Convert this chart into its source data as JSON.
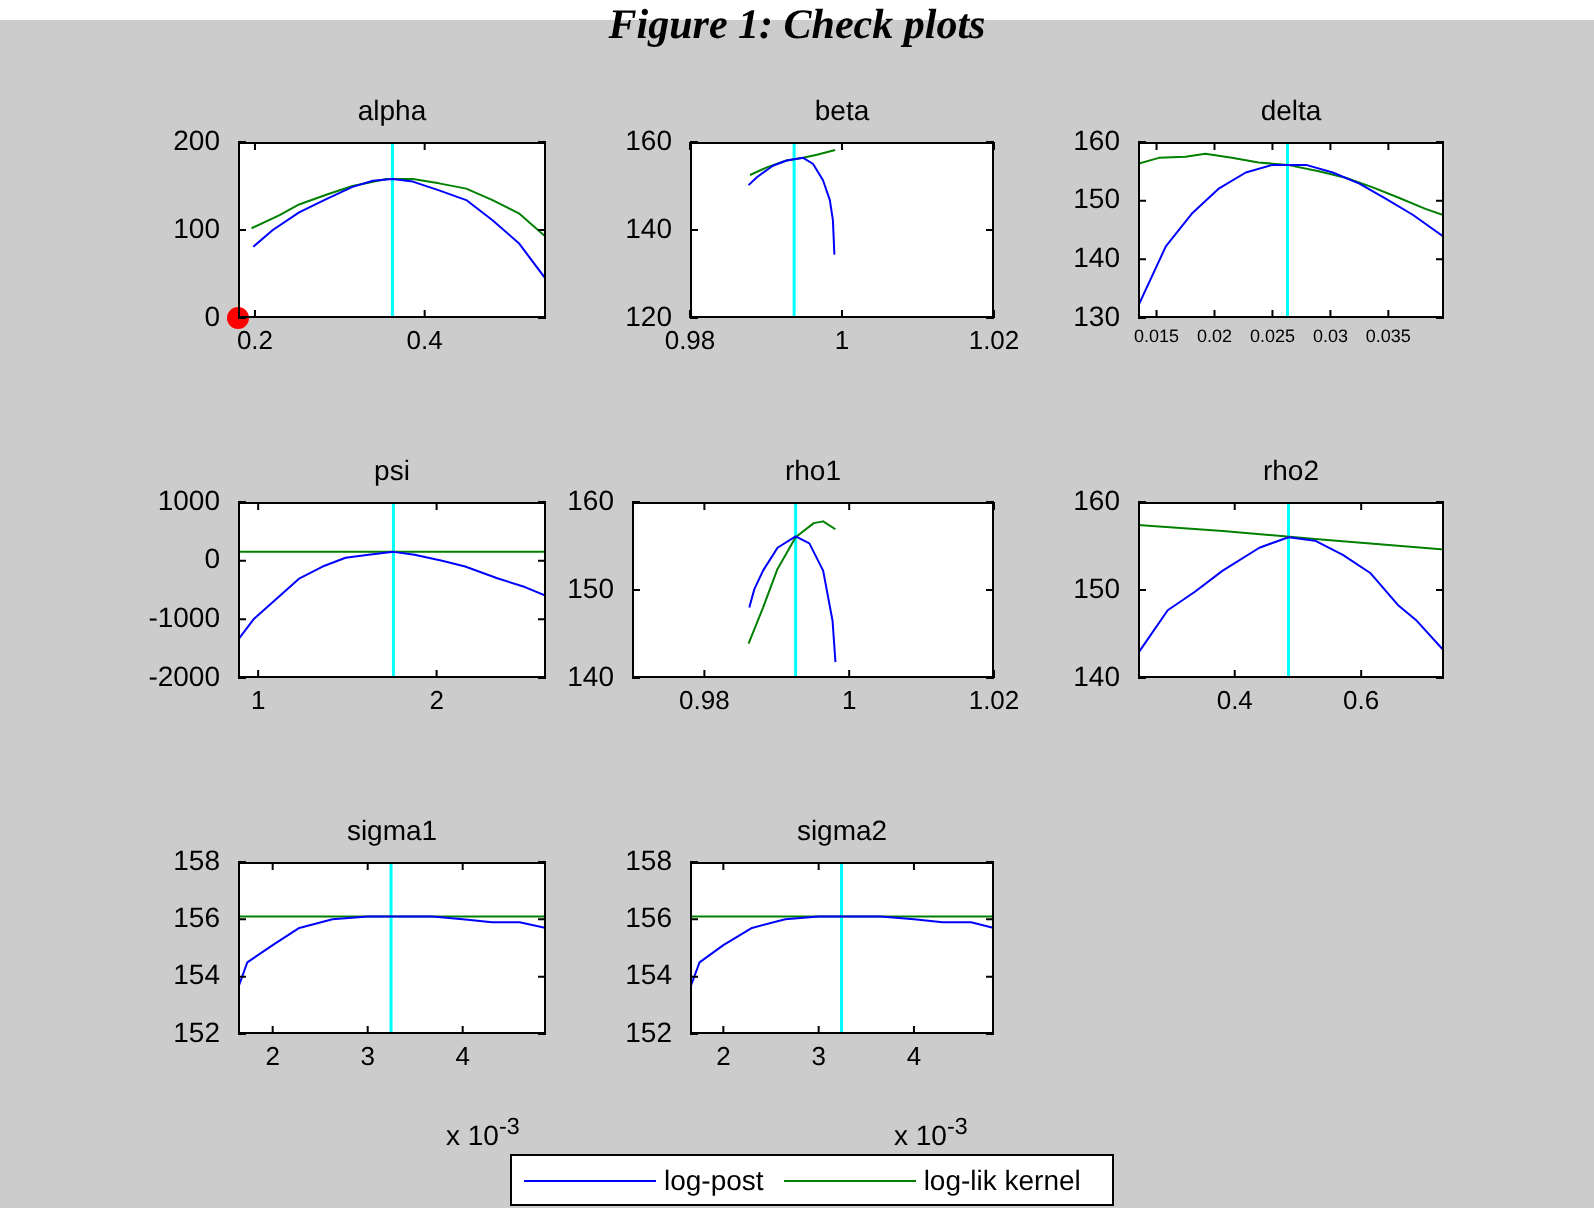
{
  "chart_data": [
    {
      "type": "line",
      "title": "alpha",
      "annotations": [
        "Figure 1: Check plots"
      ],
      "legend": "bottom",
      "xlim": [
        0.18,
        0.543
      ],
      "xticks": [
        0.2,
        0.4
      ],
      "ylim": [
        0,
        200
      ],
      "yticks": [
        0,
        100,
        200
      ],
      "marker": "none",
      "ref_lines": [
        {
          "axis": "x",
          "value": 0.362,
          "color": "#00ffff"
        }
      ],
      "series": [
        {
          "name": "log-post",
          "color": "#0000ff",
          "x": [
            0.198,
            0.221,
            0.252,
            0.284,
            0.315,
            0.339,
            0.362,
            0.386,
            0.417,
            0.449,
            0.48,
            0.511,
            0.543
          ],
          "values": [
            81,
            100,
            120,
            135,
            149,
            156,
            158,
            155,
            145,
            134,
            111,
            85,
            44
          ]
        },
        {
          "name": "log-lik kernel",
          "color": "#008000",
          "x": [
            0.196,
            0.229,
            0.252,
            0.284,
            0.315,
            0.355,
            0.386,
            0.417,
            0.449,
            0.48,
            0.511,
            0.543
          ],
          "values": [
            102,
            117,
            129,
            140,
            150,
            158,
            158,
            153,
            147,
            134,
            119,
            92
          ]
        },
        {
          "type": "scatter",
          "marker": "circle",
          "color": "#ff0000",
          "x": [
            0.18
          ],
          "values": [
            0
          ]
        }
      ]
    },
    {
      "type": "line",
      "title": "beta",
      "xlim": [
        0.98,
        1.02
      ],
      "xticks": [
        0.98,
        1,
        1.02
      ],
      "ylim": [
        120,
        160
      ],
      "yticks": [
        120,
        140,
        160
      ],
      "marker": "none",
      "ref_lines": [
        {
          "axis": "x",
          "value": 0.9937,
          "color": "#00ffff"
        }
      ],
      "series": [
        {
          "color": "#0000ff",
          "x": [
            0.9877,
            0.9888,
            0.9909,
            0.9927,
            0.9949,
            0.9962,
            0.9975,
            0.9984,
            0.9988,
            0.999
          ],
          "values": [
            150.2,
            152,
            154.6,
            155.8,
            156.4,
            155,
            151.3,
            146.8,
            142.3,
            134.4
          ]
        },
        {
          "color": "#008000",
          "x": [
            0.9879,
            0.9902,
            0.9927,
            0.9949,
            0.9967,
            0.9991
          ],
          "values": [
            152.5,
            154.3,
            155.8,
            156.4,
            157.1,
            158.2
          ]
        }
      ]
    },
    {
      "type": "line",
      "title": "delta",
      "xlim": [
        0.0134,
        0.0398
      ],
      "xticks": [
        0.015,
        0.02,
        0.025,
        0.03,
        0.035
      ],
      "ylim": [
        130,
        160
      ],
      "yticks": [
        130,
        140,
        150,
        160
      ],
      "marker": "none",
      "ref_lines": [
        {
          "axis": "x",
          "value": 0.0263,
          "color": "#00ffff"
        }
      ],
      "series": [
        {
          "color": "#0000ff",
          "x": [
            0.0134,
            0.0158,
            0.0181,
            0.0204,
            0.0227,
            0.025,
            0.0279,
            0.0302,
            0.0325,
            0.0348,
            0.0371,
            0.0398
          ],
          "values": [
            132,
            142.2,
            147.9,
            152.1,
            154.8,
            156.1,
            156.1,
            154.8,
            152.9,
            150.3,
            147.6,
            143.8
          ]
        },
        {
          "color": "#008000",
          "x": [
            0.0134,
            0.0152,
            0.0175,
            0.0192,
            0.0215,
            0.0238,
            0.0263,
            0.029,
            0.0313,
            0.0336,
            0.0359,
            0.0382,
            0.0398
          ],
          "values": [
            156.3,
            157.3,
            157.5,
            158,
            157.3,
            156.5,
            156.1,
            155,
            153.9,
            152.3,
            150.5,
            148.6,
            147.5
          ]
        }
      ]
    },
    {
      "type": "line",
      "title": "psi",
      "xlim": [
        0.887,
        2.613
      ],
      "xticks": [
        1,
        2
      ],
      "ylim": [
        -2000,
        1000
      ],
      "yticks": [
        -2000,
        -1000,
        0,
        1000
      ],
      "marker": "none",
      "ref_lines": [
        {
          "axis": "x",
          "value": 1.758,
          "color": "#00ffff"
        }
      ],
      "series": [
        {
          "color": "#0000ff",
          "x": [
            0.887,
            0.974,
            1.103,
            1.232,
            1.361,
            1.49,
            1.619,
            1.758,
            1.876,
            2.031,
            2.16,
            2.34,
            2.495,
            2.613
          ],
          "values": [
            -1350,
            -1000,
            -650,
            -300,
            -100,
            50,
            100,
            150,
            100,
            0,
            -100,
            -300,
            -450,
            -600
          ]
        },
        {
          "color": "#008000",
          "x": [
            0.887,
            1.758,
            2.613
          ],
          "values": [
            150,
            150,
            150
          ]
        }
      ]
    },
    {
      "type": "line",
      "title": "rho1",
      "xlim": [
        0.97,
        1.02
      ],
      "xticks": [
        0.98,
        1,
        1.02
      ],
      "ylim": [
        140,
        160
      ],
      "yticks": [
        140,
        150,
        160
      ],
      "marker": "none",
      "ref_lines": [
        {
          "axis": "x",
          "value": 0.9926,
          "color": "#00ffff"
        }
      ],
      "series": [
        {
          "color": "#0000ff",
          "x": [
            0.9862,
            0.9869,
            0.9881,
            0.9901,
            0.9926,
            0.9945,
            0.9964,
            0.9977,
            0.9981
          ],
          "values": [
            148,
            150.1,
            152.2,
            154.8,
            156.1,
            155.3,
            152.2,
            146.5,
            141.8
          ]
        },
        {
          "color": "#008000",
          "x": [
            0.9861,
            0.9881,
            0.9901,
            0.9926,
            0.9951,
            0.9964,
            0.9981
          ],
          "values": [
            143.9,
            148,
            152.4,
            156,
            157.6,
            157.8,
            156.9
          ]
        }
      ]
    },
    {
      "type": "line",
      "title": "rho2",
      "xlim": [
        0.247,
        0.731
      ],
      "xticks": [
        0.4,
        0.6
      ],
      "ylim": [
        140,
        160
      ],
      "yticks": [
        140,
        150,
        160
      ],
      "marker": "none",
      "ref_lines": [
        {
          "axis": "x",
          "value": 0.485,
          "color": "#00ffff"
        }
      ],
      "series": [
        {
          "color": "#0000ff",
          "x": [
            0.247,
            0.294,
            0.337,
            0.381,
            0.439,
            0.485,
            0.527,
            0.571,
            0.615,
            0.658,
            0.688,
            0.731
          ],
          "values": [
            142.8,
            147.7,
            149.8,
            152.2,
            154.8,
            156,
            155.6,
            154,
            151.9,
            148.3,
            146.5,
            143.1
          ]
        },
        {
          "color": "#008000",
          "x": [
            0.247,
            0.381,
            0.527,
            0.731
          ],
          "values": [
            157.4,
            156.7,
            155.8,
            154.6
          ]
        }
      ]
    },
    {
      "type": "line",
      "title": "sigma1",
      "annotations": [
        "x 10$^{-3}$"
      ],
      "xlim": [
        1.635,
        4.877
      ],
      "xticks": [
        2,
        3,
        4
      ],
      "ylim": [
        152,
        158
      ],
      "yticks": [
        152,
        154,
        156,
        158
      ],
      "marker": "none",
      "ref_lines": [
        {
          "axis": "x",
          "value": 3.246,
          "color": "#00ffff"
        }
      ],
      "series": [
        {
          "color": "#0000ff",
          "x": [
            1.635,
            1.733,
            2,
            2.28,
            2.63,
            3,
            3.33,
            3.68,
            4,
            4.31,
            4.6,
            4.877
          ],
          "values": [
            153.6,
            154.5,
            155.1,
            155.7,
            156,
            156.1,
            156.1,
            156.1,
            156,
            155.9,
            155.9,
            155.7
          ]
        },
        {
          "color": "#008000",
          "x": [
            1.635,
            3.246,
            4.877
          ],
          "values": [
            156.1,
            156.1,
            156.1
          ]
        }
      ]
    },
    {
      "type": "line",
      "title": "sigma2",
      "annotations": [
        "x 10$^{-3}$"
      ],
      "xlim": [
        1.65,
        4.84
      ],
      "xticks": [
        2,
        3,
        4
      ],
      "ylim": [
        152,
        158
      ],
      "yticks": [
        152,
        154,
        156,
        158
      ],
      "marker": "none",
      "ref_lines": [
        {
          "axis": "x",
          "value": 3.24,
          "color": "#00ffff"
        }
      ],
      "series": [
        {
          "color": "#0000ff",
          "x": [
            1.65,
            1.75,
            2,
            2.3,
            2.65,
            3,
            3.3,
            3.65,
            4,
            4.3,
            4.6,
            4.84
          ],
          "values": [
            153.6,
            154.5,
            155.1,
            155.7,
            156,
            156.1,
            156.1,
            156.1,
            156,
            155.9,
            155.9,
            155.7
          ]
        },
        {
          "color": "#008000",
          "x": [
            1.65,
            3.24,
            4.84
          ],
          "values": [
            156.1,
            156.1,
            156.1
          ]
        }
      ]
    }
  ]
}
